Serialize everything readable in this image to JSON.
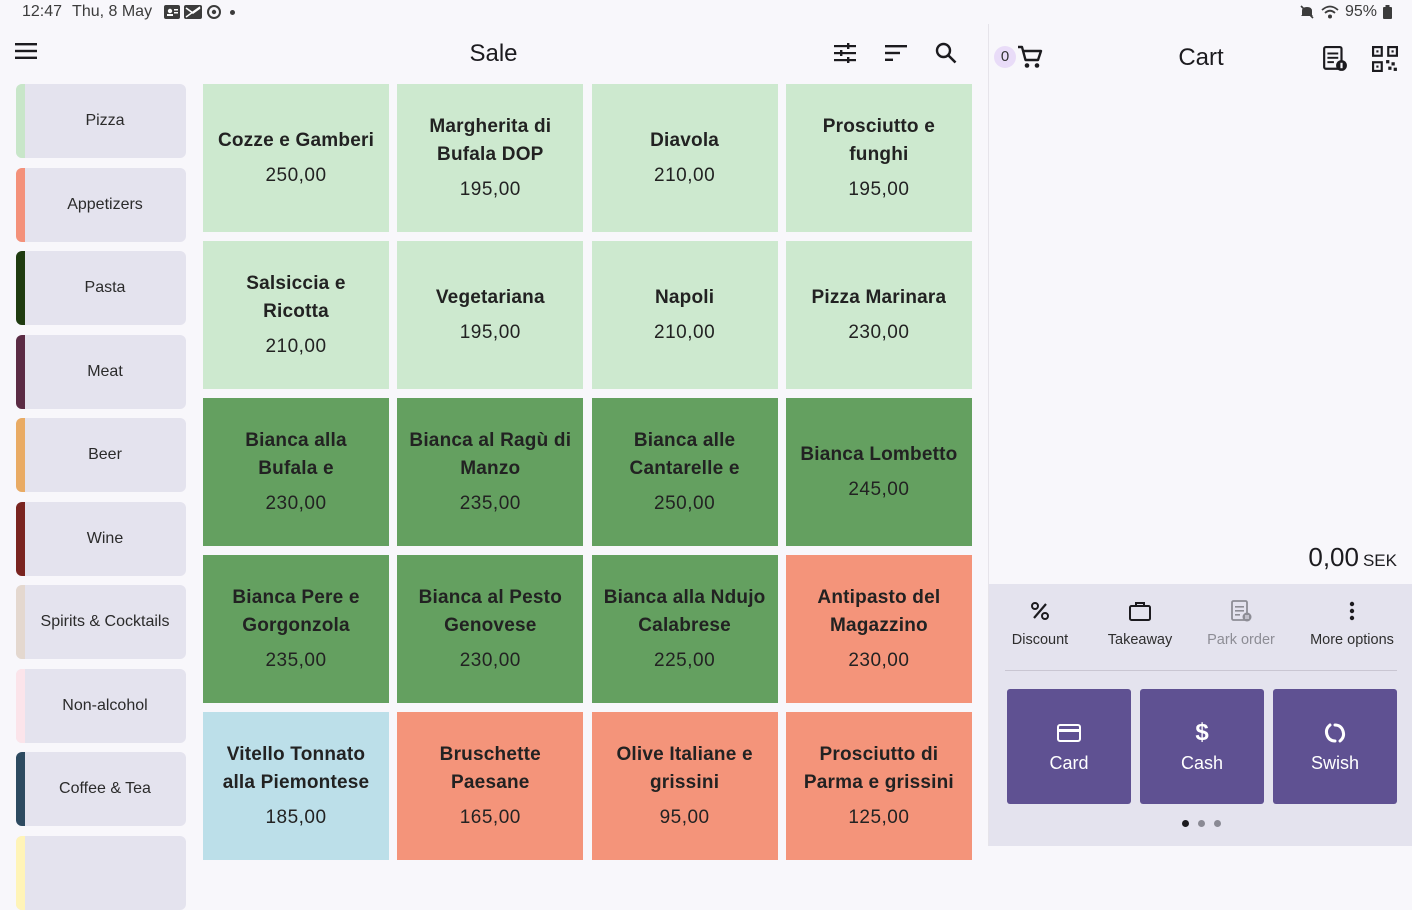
{
  "status_bar": {
    "time": "12:47",
    "date": "Thu, 8 May",
    "battery": "95%"
  },
  "header": {
    "title": "Sale",
    "icons": [
      "menu-icon",
      "tune-icon",
      "sort-icon",
      "search-icon"
    ]
  },
  "categories": [
    {
      "label": "Pizza",
      "color": "#c8e6c9"
    },
    {
      "label": "Appetizers",
      "color": "#f4917a"
    },
    {
      "label": "Pasta",
      "color": "#1f3b10"
    },
    {
      "label": "Meat",
      "color": "#5b2b44"
    },
    {
      "label": "Beer",
      "color": "#e9ab64"
    },
    {
      "label": "Wine",
      "color": "#7a2420"
    },
    {
      "label": "Spirits & Cocktails",
      "color": "#e4d8cf"
    },
    {
      "label": "Non-alcohol",
      "color": "#fbe4ea"
    },
    {
      "label": "Coffee & Tea",
      "color": "#2d4a60"
    },
    {
      "label": "",
      "color": "#fff4b8"
    }
  ],
  "products": [
    {
      "name": "Cozze e Gamberi",
      "price": "250,00",
      "color": "#cde9cf"
    },
    {
      "name": "Margherita di Bufala DOP",
      "price": "195,00",
      "color": "#cde9cf"
    },
    {
      "name": "Diavola",
      "price": "210,00",
      "color": "#cde9cf"
    },
    {
      "name": "Prosciutto e funghi",
      "price": "195,00",
      "color": "#cde9cf"
    },
    {
      "name": "Salsiccia e Ricotta",
      "price": "210,00",
      "color": "#cde9cf"
    },
    {
      "name": "Vegetariana",
      "price": "195,00",
      "color": "#cde9cf"
    },
    {
      "name": "Napoli",
      "price": "210,00",
      "color": "#cde9cf"
    },
    {
      "name": "Pizza Marinara",
      "price": "230,00",
      "color": "#cde9cf"
    },
    {
      "name": "Bianca alla Bufala e Prosciutto",
      "price": "230,00",
      "color": "#64a060"
    },
    {
      "name": "Bianca al Ragù di Manzo",
      "price": "235,00",
      "color": "#64a060"
    },
    {
      "name": "Bianca alle Cantarelle e Bres...",
      "price": "250,00",
      "color": "#64a060"
    },
    {
      "name": "Bianca Lombetto",
      "price": "245,00",
      "color": "#64a060"
    },
    {
      "name": "Bianca Pere e Gorgonzola",
      "price": "235,00",
      "color": "#64a060"
    },
    {
      "name": "Bianca al Pesto Genovese",
      "price": "230,00",
      "color": "#64a060"
    },
    {
      "name": "Bianca alla Ndujo Calabrese",
      "price": "225,00",
      "color": "#64a060"
    },
    {
      "name": "Antipasto del Magazzino",
      "price": "230,00",
      "color": "#f4947a"
    },
    {
      "name": "Vitello Tonnato alla Piemontese",
      "price": "185,00",
      "color": "#bcdfe9"
    },
    {
      "name": "Bruschette Paesane",
      "price": "165,00",
      "color": "#f4947a"
    },
    {
      "name": "Olive Italiane e grissini",
      "price": "95,00",
      "color": "#f4947a"
    },
    {
      "name": "Prosciutto di Parma e grissini",
      "price": "125,00",
      "color": "#f4947a"
    }
  ],
  "cart": {
    "title": "Cart",
    "count": "0",
    "total": "0,00",
    "currency": "SEK",
    "options": [
      {
        "label": "Discount",
        "icon": "percent-icon",
        "enabled": true
      },
      {
        "label": "Takeaway",
        "icon": "briefcase-icon",
        "enabled": true
      },
      {
        "label": "Park order",
        "icon": "receipt-icon",
        "enabled": false
      },
      {
        "label": "More options",
        "icon": "more-vertical-icon",
        "enabled": true
      }
    ],
    "payments": [
      {
        "label": "Card",
        "icon": "credit-card-icon"
      },
      {
        "label": "Cash",
        "icon": "dollar-icon"
      },
      {
        "label": "Swish",
        "icon": "swish-icon"
      }
    ],
    "page_dots": 3,
    "active_dot": 1,
    "accent": "#5f5192"
  }
}
